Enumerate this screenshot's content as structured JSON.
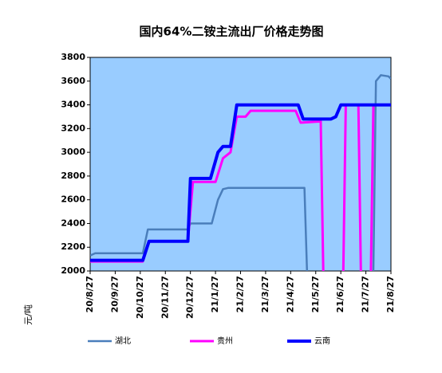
{
  "chart_data": {
    "type": "line",
    "title": "国内64%二铵主流出厂价格走势图",
    "y_label": "元/吨",
    "xlim": [
      0,
      12
    ],
    "xticks": [
      {
        "value": 0,
        "label": "20/8/27"
      },
      {
        "value": 1,
        "label": "20/9/27"
      },
      {
        "value": 2,
        "label": "20/10/27"
      },
      {
        "value": 3,
        "label": "20/11/27"
      },
      {
        "value": 4,
        "label": "20/12/27"
      },
      {
        "value": 5,
        "label": "21/1/27"
      },
      {
        "value": 6,
        "label": "21/2/27"
      },
      {
        "value": 7,
        "label": "21/3/27"
      },
      {
        "value": 8,
        "label": "21/4/27"
      },
      {
        "value": 9,
        "label": "21/5/27"
      },
      {
        "value": 10,
        "label": "21/6/27"
      },
      {
        "value": 11,
        "label": "21/7/27"
      },
      {
        "value": 12,
        "label": "21/8/27"
      }
    ],
    "ylim": [
      2000,
      3800
    ],
    "yticks": [
      2000,
      2200,
      2400,
      2600,
      2800,
      3000,
      3200,
      3400,
      3600,
      3800
    ],
    "grid": false,
    "legend": "bottom",
    "series": [
      {
        "name": "湖北",
        "color": "#4a7ebb",
        "width": 2.5,
        "x": [
          0,
          0.2,
          2.1,
          2.3,
          3.9,
          4.0,
          4.85,
          5.1,
          5.3,
          5.5,
          8.55,
          8.65,
          8.7,
          11.3,
          11.4,
          11.6,
          11.9,
          12
        ],
        "values": [
          2130,
          2150,
          2150,
          2350,
          2350,
          2400,
          2400,
          2600,
          2690,
          2700,
          2700,
          2000,
          null,
          2000,
          3600,
          3650,
          3640,
          3620
        ]
      },
      {
        "name": "贵州",
        "color": "#ff00ff",
        "width": 3,
        "x": [
          0,
          2.1,
          2.35,
          3.9,
          4.1,
          5.0,
          5.3,
          5.6,
          5.85,
          6.2,
          6.4,
          8.2,
          8.4,
          9.2,
          9.3,
          9.5,
          10.1,
          10.2,
          10.7,
          10.8,
          10.9,
          11.2,
          11.3,
          12
        ],
        "values": [
          2080,
          2080,
          2250,
          2250,
          2750,
          2750,
          2950,
          3000,
          3300,
          3300,
          3350,
          3350,
          3250,
          3260,
          2000,
          null,
          2000,
          3400,
          3400,
          2000,
          null,
          2000,
          3400,
          3400
        ]
      },
      {
        "name": "云南",
        "color": "#0000ff",
        "width": 4,
        "x": [
          0,
          2.1,
          2.35,
          3.9,
          4.0,
          4.8,
          5.1,
          5.3,
          5.6,
          5.85,
          8.3,
          8.5,
          9.6,
          9.8,
          10.0,
          12
        ],
        "values": [
          2090,
          2090,
          2250,
          2250,
          2780,
          2780,
          3000,
          3050,
          3050,
          3400,
          3400,
          3280,
          3280,
          3300,
          3400,
          3400
        ]
      }
    ]
  }
}
